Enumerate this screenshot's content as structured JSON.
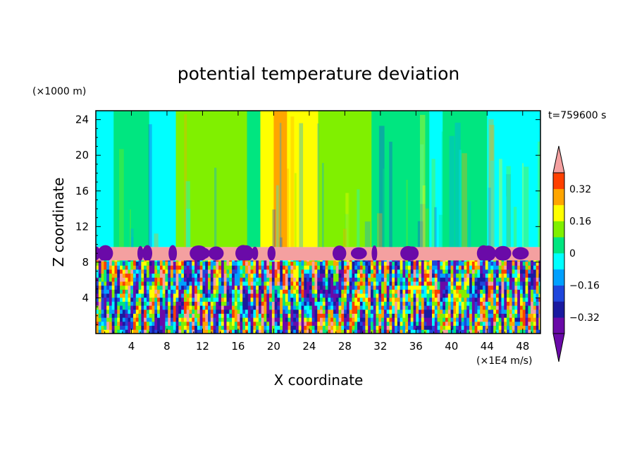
{
  "chart_data": {
    "type": "heatmap",
    "title": "potential temperature deviation",
    "xlabel": "X coordinate",
    "ylabel": "Z coordinate",
    "x_unit": "(×1E4 m/s)",
    "y_unit": "(×1000 m)",
    "time_label": "t=759600 s",
    "xlim": [
      0,
      50
    ],
    "ylim": [
      0,
      25
    ],
    "x_ticks": [
      4,
      8,
      12,
      16,
      20,
      24,
      28,
      32,
      36,
      40,
      44,
      48
    ],
    "y_ticks": [
      4,
      8,
      12,
      16,
      20,
      24
    ],
    "colorbar": {
      "levels": [
        -0.4,
        -0.32,
        -0.24,
        -0.16,
        -0.08,
        0,
        0.08,
        0.16,
        0.24,
        0.32,
        0.4
      ],
      "labels": [
        {
          "value": 0.32,
          "text": "0.32"
        },
        {
          "value": 0.16,
          "text": "0.16"
        },
        {
          "value": 0,
          "text": "0"
        },
        {
          "value": -0.16,
          "text": "−0.16"
        },
        {
          "value": -0.32,
          "text": "−0.32"
        }
      ],
      "colors": [
        "#6a0aa8",
        "#1a1aa0",
        "#1e46dc",
        "#00a0ff",
        "#00ffff",
        "#00e680",
        "#80f000",
        "#ffff00",
        "#ffa500",
        "#ff4000",
        "#f03030"
      ],
      "over_color": "#f4a0a0",
      "under_color": "#6a0aa8"
    },
    "upper_field": [
      {
        "x0": 0,
        "x1": 2,
        "value": -0.06
      },
      {
        "x0": 2,
        "x1": 4.5,
        "value": 0.02
      },
      {
        "x0": 4.5,
        "x1": 6,
        "value": 0.05
      },
      {
        "x0": 6,
        "x1": 9,
        "value": -0.05
      },
      {
        "x0": 9,
        "x1": 14,
        "value": 0.1
      },
      {
        "x0": 14,
        "x1": 17,
        "value": 0.1
      },
      {
        "x0": 17,
        "x1": 18.5,
        "value": 0.05
      },
      {
        "x0": 18.5,
        "x1": 20,
        "value": 0.2
      },
      {
        "x0": 20,
        "x1": 21.5,
        "value": 0.3
      },
      {
        "x0": 21.5,
        "x1": 25,
        "value": 0.2
      },
      {
        "x0": 25,
        "x1": 29,
        "value": 0.14
      },
      {
        "x0": 29,
        "x1": 31,
        "value": 0.1
      },
      {
        "x0": 31,
        "x1": 34,
        "value": 0.04
      },
      {
        "x0": 34,
        "x1": 37.5,
        "value": 0.06
      },
      {
        "x0": 37.5,
        "x1": 39,
        "value": -0.06
      },
      {
        "x0": 39,
        "x1": 44,
        "value": 0.04
      },
      {
        "x0": 44,
        "x1": 47,
        "value": -0.06
      },
      {
        "x0": 47,
        "x1": 50,
        "value": -0.08
      }
    ]
  }
}
